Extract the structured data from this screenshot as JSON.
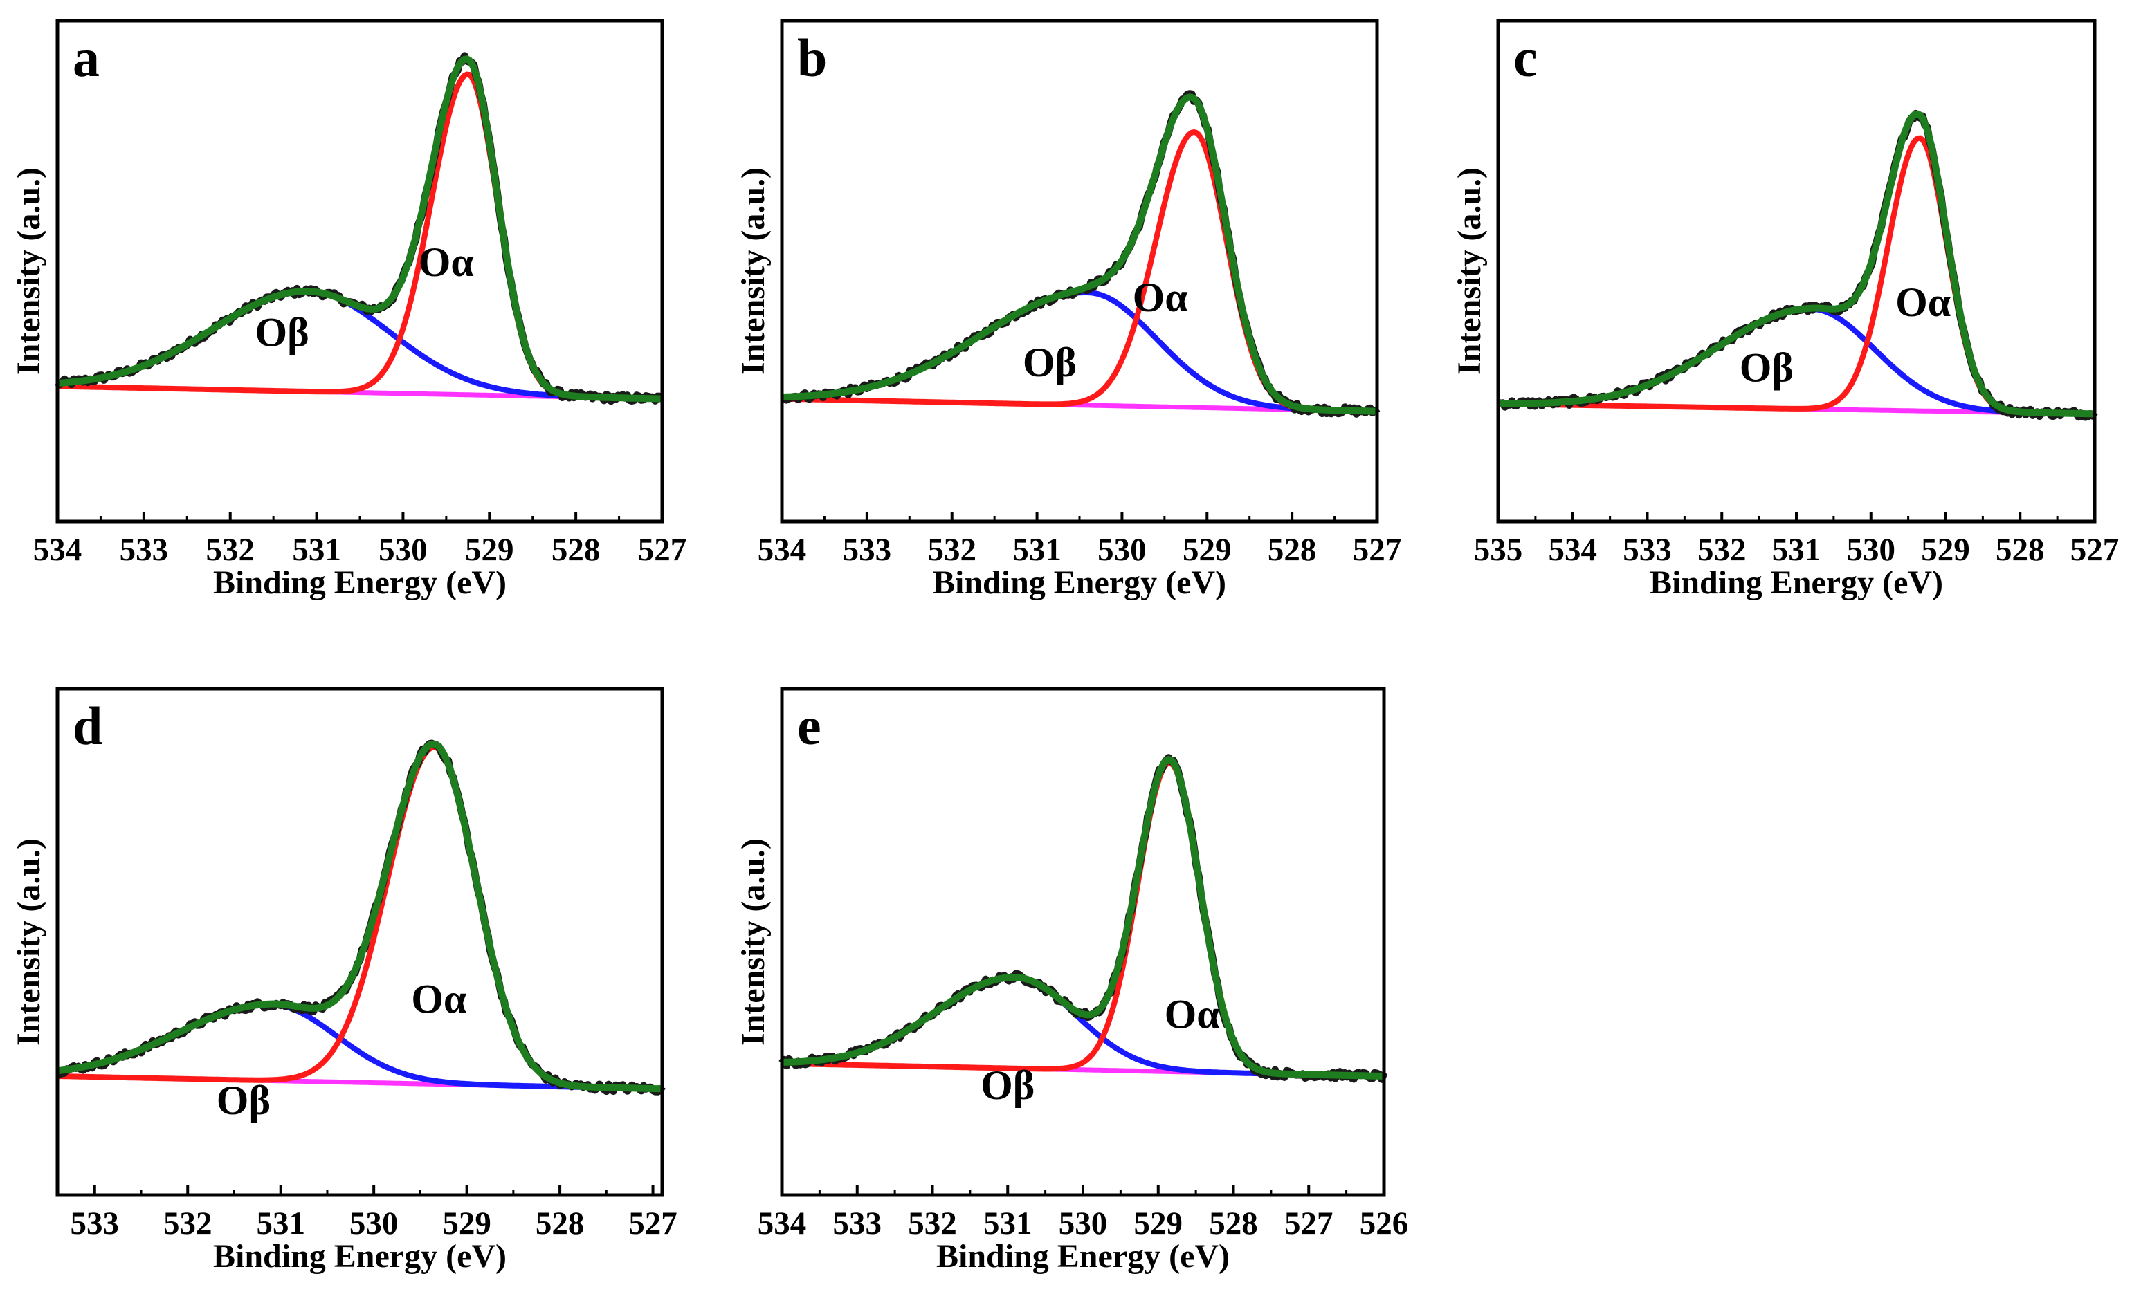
{
  "figure": {
    "ylabel": "Intensity (a.u.)",
    "xlabel": "Binding Energy (eV)",
    "colors": {
      "raw": "#1a1a1a",
      "envelope": "#1e7d1e",
      "o_alpha": "#ff1a1a",
      "o_beta": "#1a1aff",
      "baseline": "#ff33ff"
    }
  },
  "chart_data": [
    {
      "panel": "a",
      "type": "line",
      "xlim": [
        534,
        527
      ],
      "ylim": [
        0,
        1
      ],
      "xticks": [
        534,
        533,
        532,
        531,
        530,
        529,
        528,
        527
      ],
      "xlabel": "Binding Energy (eV)",
      "ylabel": "Intensity (a.u.)",
      "baseline": [
        0.27,
        0.245
      ],
      "series": [
        {
          "name": "Oα",
          "center": 529.25,
          "height": 0.64,
          "width_left": 0.42,
          "width_right": 0.34
        },
        {
          "name": "Oβ",
          "center": 531.1,
          "height": 0.2,
          "width_left": 1.1,
          "width_right": 0.95
        }
      ],
      "annotations": [
        {
          "text": "Oα",
          "x": 529.5,
          "y": 0.49
        },
        {
          "text": "Oβ",
          "x": 531.4,
          "y": 0.35
        }
      ]
    },
    {
      "panel": "b",
      "type": "line",
      "xlim": [
        534,
        527
      ],
      "ylim": [
        0,
        1
      ],
      "xticks": [
        534,
        533,
        532,
        531,
        530,
        529,
        528,
        527
      ],
      "xlabel": "Binding Energy (eV)",
      "ylabel": "Intensity (a.u.)",
      "baseline": [
        0.245,
        0.22
      ],
      "series": [
        {
          "name": "Oα",
          "center": 529.15,
          "height": 0.55,
          "width_left": 0.45,
          "width_right": 0.38
        },
        {
          "name": "Oβ",
          "center": 530.4,
          "height": 0.225,
          "width_left": 1.25,
          "width_right": 0.8
        }
      ],
      "annotations": [
        {
          "text": "Oα",
          "x": 529.55,
          "y": 0.42
        },
        {
          "text": "Oβ",
          "x": 530.85,
          "y": 0.29
        }
      ]
    },
    {
      "panel": "c",
      "type": "line",
      "xlim": [
        535,
        527
      ],
      "ylim": [
        0,
        1
      ],
      "xticks": [
        535,
        534,
        533,
        532,
        531,
        530,
        529,
        528,
        527
      ],
      "xlabel": "Binding Energy (eV)",
      "ylabel": "Intensity (a.u.)",
      "baseline": [
        0.235,
        0.215
      ],
      "series": [
        {
          "name": "Oα",
          "center": 529.35,
          "height": 0.545,
          "width_left": 0.42,
          "width_right": 0.37
        },
        {
          "name": "Oβ",
          "center": 530.8,
          "height": 0.2,
          "width_left": 1.25,
          "width_right": 0.85
        }
      ],
      "annotations": [
        {
          "text": "Oα",
          "x": 529.3,
          "y": 0.41
        },
        {
          "text": "Oβ",
          "x": 531.4,
          "y": 0.28
        }
      ]
    },
    {
      "panel": "d",
      "type": "line",
      "xlim": [
        533.4,
        526.9
      ],
      "ylim": [
        0,
        1
      ],
      "xticks": [
        533,
        532,
        531,
        530,
        529,
        528,
        527
      ],
      "xlabel": "Binding Energy (eV)",
      "ylabel": "Intensity (a.u.)",
      "baseline": [
        0.235,
        0.21
      ],
      "series": [
        {
          "name": "Oα",
          "center": 529.35,
          "height": 0.665,
          "width_left": 0.5,
          "width_right": 0.45
        },
        {
          "name": "Oβ",
          "center": 531.1,
          "height": 0.15,
          "width_left": 1.0,
          "width_right": 0.7
        }
      ],
      "annotations": [
        {
          "text": "Oα",
          "x": 529.3,
          "y": 0.36
        },
        {
          "text": "Oβ",
          "x": 531.4,
          "y": 0.16
        }
      ]
    },
    {
      "panel": "e",
      "type": "line",
      "xlim": [
        534,
        526
      ],
      "ylim": [
        0,
        1
      ],
      "xticks": [
        534,
        533,
        532,
        531,
        530,
        529,
        528,
        527,
        526
      ],
      "xlabel": "Binding Energy (eV)",
      "ylabel": "Intensity (a.u.)",
      "baseline": [
        0.26,
        0.235
      ],
      "series": [
        {
          "name": "Oα",
          "center": 528.85,
          "height": 0.61,
          "width_left": 0.42,
          "width_right": 0.4
        },
        {
          "name": "Oβ",
          "center": 530.9,
          "height": 0.18,
          "width_left": 1.05,
          "width_right": 0.8
        }
      ],
      "annotations": [
        {
          "text": "Oα",
          "x": 528.55,
          "y": 0.33
        },
        {
          "text": "Oβ",
          "x": 531.0,
          "y": 0.19
        }
      ]
    }
  ]
}
